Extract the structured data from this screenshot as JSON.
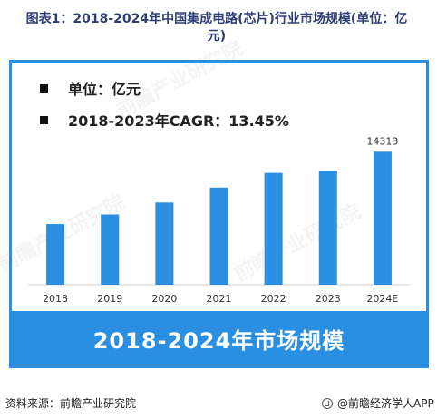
{
  "title": "图表1：2018-2024年中国集成电路(芯片)行业市场规模(单位：亿元)",
  "unit_note": "单位：亿元",
  "cagr_note": "2018-2023年CAGR：13.45%",
  "banner": "2018-2024年市场规模",
  "source": "资料来源：前瞻产业研究院",
  "brand": "@前瞻经济学人APP",
  "watermark": "前瞻产业研究院",
  "colors": {
    "bar": "#2a8fe0",
    "frame": "#2a8fe0",
    "title": "#2e3d75"
  },
  "chart_data": {
    "type": "bar",
    "categories": [
      "2018",
      "2019",
      "2020",
      "2021",
      "2022",
      "2023",
      "2024E"
    ],
    "values": [
      6532,
      7562,
      8848,
      10458,
      12036,
      12277,
      14313
    ],
    "data_labels": [
      "",
      "",
      "",
      "",
      "",
      "",
      "14313"
    ],
    "ylim": [
      0,
      16000
    ],
    "grid": false,
    "legend": "none"
  }
}
